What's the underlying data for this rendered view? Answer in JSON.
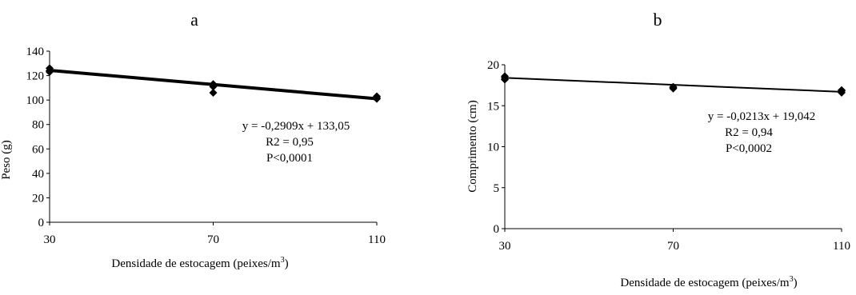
{
  "chart_data": [
    {
      "type": "scatter",
      "panel_label": "a",
      "xlabel": "Densidade de estocagem (peixes/m³)",
      "ylabel": "Peso (g)",
      "x_ticks": [
        "30",
        "70",
        "110"
      ],
      "y_ticks": [
        "0",
        "20",
        "40",
        "60",
        "80",
        "100",
        "120",
        "140"
      ],
      "xlim": [
        30,
        110
      ],
      "ylim": [
        0,
        140
      ],
      "grid": false,
      "points": [
        {
          "x": 30,
          "y": 126
        },
        {
          "x": 30,
          "y": 124
        },
        {
          "x": 30,
          "y": 123
        },
        {
          "x": 70,
          "y": 113
        },
        {
          "x": 70,
          "y": 111
        },
        {
          "x": 70,
          "y": 106
        },
        {
          "x": 110,
          "y": 103
        },
        {
          "x": 110,
          "y": 102
        },
        {
          "x": 110,
          "y": 101
        }
      ],
      "trendline": {
        "slope": -0.2909,
        "intercept": 133.05
      },
      "annotation": [
        "y = -0,2909x + 133,05",
        "R2 = 0,95",
        "P<0,0001"
      ]
    },
    {
      "type": "scatter",
      "panel_label": "b",
      "xlabel": "Densidade de estocagem (peixes/m³)",
      "ylabel": "Comprimento (cm)",
      "x_ticks": [
        "30",
        "70",
        "110"
      ],
      "y_ticks": [
        "0",
        "5",
        "10",
        "15",
        "20"
      ],
      "xlim": [
        30,
        110
      ],
      "ylim": [
        0,
        20
      ],
      "grid": false,
      "points": [
        {
          "x": 30,
          "y": 18.6
        },
        {
          "x": 30,
          "y": 18.4
        },
        {
          "x": 30,
          "y": 18.2
        },
        {
          "x": 70,
          "y": 17.3
        },
        {
          "x": 70,
          "y": 17.2
        },
        {
          "x": 70,
          "y": 17.1
        },
        {
          "x": 110,
          "y": 16.9
        },
        {
          "x": 110,
          "y": 16.8
        },
        {
          "x": 110,
          "y": 16.6
        }
      ],
      "trendline": {
        "slope": -0.0213,
        "intercept": 19.042
      },
      "annotation": [
        "y = -0,0213x + 19,042",
        "R2 = 0,94",
        "P<0,0002"
      ]
    }
  ]
}
